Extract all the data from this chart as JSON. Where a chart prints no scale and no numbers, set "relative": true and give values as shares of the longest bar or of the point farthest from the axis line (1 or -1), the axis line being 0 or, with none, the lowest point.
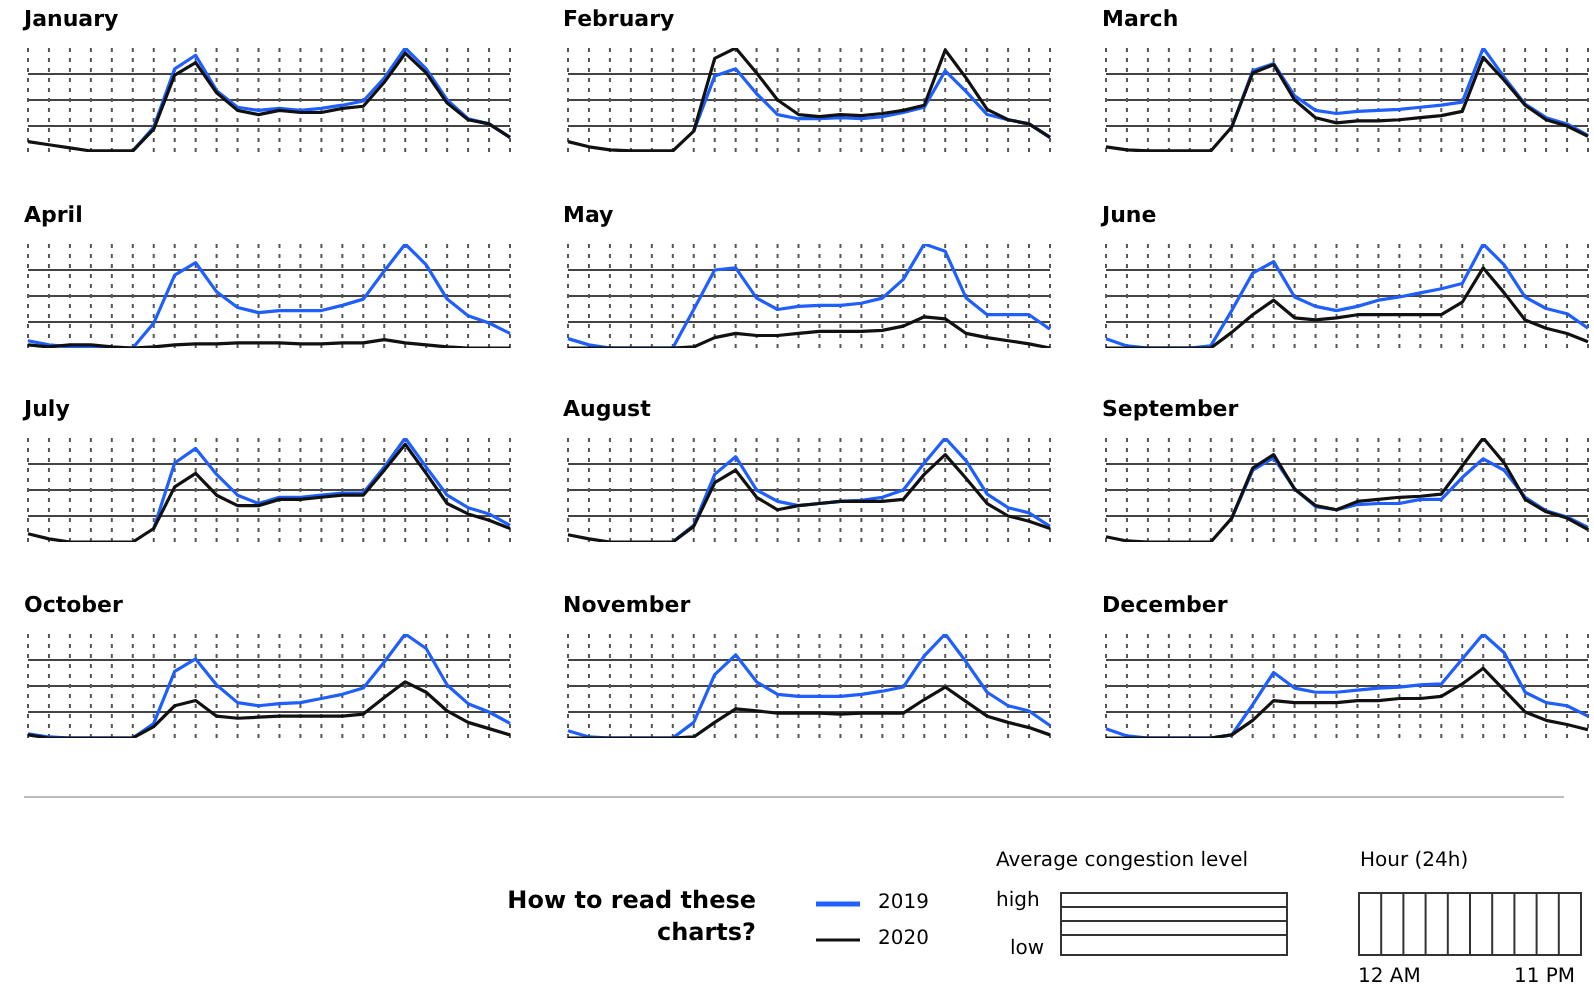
{
  "chart_data": [
    {
      "type": "line",
      "title": "January",
      "relative": true,
      "grid": true,
      "categories": [
        null,
        null,
        null,
        null,
        null,
        null,
        null,
        null,
        null,
        null,
        null,
        null,
        null,
        null,
        null,
        null,
        null,
        null,
        null,
        null,
        null,
        null,
        null,
        null
      ],
      "series": [
        {
          "name": "2019",
          "color": "#1f5fff",
          "values": [
            null,
            null,
            null,
            null,
            null,
            0.01,
            0.24,
            0.8,
            0.93,
            0.59,
            0.43,
            0.4,
            0.42,
            0.4,
            0.42,
            0.45,
            0.49,
            0.71,
            1,
            0.8,
            0.5,
            0.32,
            0.27,
            0.14
          ]
        },
        {
          "name": "2020",
          "color": "#111111",
          "values": [
            0.1,
            0.07,
            0.04,
            0.01,
            0.01,
            0.01,
            0.22,
            0.74,
            0.86,
            0.57,
            0.4,
            0.36,
            0.4,
            0.38,
            0.38,
            0.42,
            0.44,
            0.67,
            0.95,
            0.76,
            0.47,
            0.31,
            0.27,
            0.14
          ]
        }
      ]
    },
    {
      "type": "line",
      "title": "February",
      "relative": true,
      "grid": true,
      "categories": [
        null,
        null,
        null,
        null,
        null,
        null,
        null,
        null,
        null,
        null,
        null,
        null,
        null,
        null,
        null,
        null,
        null,
        null,
        null,
        null,
        null,
        null,
        null,
        null
      ],
      "series": [
        {
          "color": "#1f5fff",
          "values": [
            null,
            null,
            null,
            null,
            null,
            null,
            0.2,
            0.73,
            0.8,
            0.56,
            0.36,
            0.32,
            0.32,
            0.33,
            0.32,
            0.34,
            0.38,
            0.43,
            0.78,
            0.58,
            0.36,
            0.31,
            0.27,
            0.14
          ]
        },
        {
          "color": "#111111",
          "values": [
            0.1,
            0.05,
            0.02,
            0.01,
            0.01,
            0.01,
            0.2,
            0.9,
            1,
            0.76,
            0.5,
            0.36,
            0.34,
            0.36,
            0.35,
            0.37,
            0.4,
            0.45,
            0.98,
            0.71,
            0.41,
            0.31,
            0.27,
            0.14
          ]
        }
      ]
    },
    {
      "type": "line",
      "title": "March",
      "relative": true,
      "grid": true,
      "categories": [
        null,
        null,
        null,
        null,
        null,
        null,
        null,
        null,
        null,
        null,
        null,
        null,
        null,
        null,
        null,
        null,
        null,
        null,
        null,
        null,
        null,
        null,
        null,
        null
      ],
      "series": [
        {
          "color": "#1f5fff",
          "values": [
            null,
            null,
            null,
            null,
            null,
            null,
            0.24,
            0.78,
            0.85,
            0.54,
            0.4,
            0.37,
            0.39,
            0.4,
            0.41,
            0.43,
            0.45,
            0.48,
            1,
            0.72,
            0.46,
            0.33,
            0.27,
            0.16
          ]
        },
        {
          "color": "#111111",
          "values": [
            0.05,
            0.02,
            0.01,
            0.01,
            0.01,
            0.01,
            0.24,
            0.76,
            0.84,
            0.5,
            0.33,
            0.28,
            0.3,
            0.3,
            0.31,
            0.33,
            0.35,
            0.39,
            0.91,
            0.69,
            0.45,
            0.31,
            0.25,
            0.15
          ]
        }
      ]
    },
    {
      "type": "line",
      "title": "April",
      "relative": true,
      "grid": true,
      "categories": [
        null,
        null,
        null,
        null,
        null,
        null,
        null,
        null,
        null,
        null,
        null,
        null,
        null,
        null,
        null,
        null,
        null,
        null,
        null,
        null,
        null,
        null,
        null,
        null
      ],
      "series": [
        {
          "color": "#1f5fff",
          "values": [
            0.07,
            0.03,
            0.01,
            0.01,
            0,
            0,
            0.24,
            0.7,
            0.82,
            0.54,
            0.39,
            0.34,
            0.36,
            0.36,
            0.36,
            0.41,
            0.47,
            0.74,
            1,
            0.8,
            0.47,
            0.31,
            0.24,
            0.14
          ]
        },
        {
          "color": "#111111",
          "values": [
            0.03,
            0.01,
            0.03,
            0.03,
            0.01,
            0,
            0.01,
            0.03,
            0.04,
            0.04,
            0.05,
            0.05,
            0.05,
            0.04,
            0.04,
            0.05,
            0.05,
            0.08,
            0.05,
            0.03,
            0.01,
            0,
            0,
            0
          ]
        }
      ]
    },
    {
      "type": "line",
      "title": "May",
      "relative": true,
      "grid": true,
      "categories": [
        null,
        null,
        null,
        null,
        null,
        null,
        null,
        null,
        null,
        null,
        null,
        null,
        null,
        null,
        null,
        null,
        null,
        null,
        null,
        null,
        null,
        null,
        null,
        null
      ],
      "series": [
        {
          "color": "#1f5fff",
          "values": [
            0.09,
            0.03,
            0,
            0,
            0,
            0,
            0.37,
            0.75,
            0.77,
            0.48,
            0.37,
            0.4,
            0.41,
            0.41,
            0.43,
            0.48,
            0.66,
            1,
            0.93,
            0.48,
            0.32,
            0.32,
            0.32,
            0.18
          ]
        },
        {
          "color": "#111111",
          "values": [
            0,
            0,
            0,
            0,
            0,
            0,
            0.01,
            0.1,
            0.14,
            0.12,
            0.12,
            0.14,
            0.16,
            0.16,
            0.16,
            0.17,
            0.21,
            0.3,
            0.28,
            0.14,
            0.1,
            0.07,
            0.04,
            0
          ]
        }
      ]
    },
    {
      "type": "line",
      "title": "June",
      "relative": true,
      "grid": true,
      "categories": [
        null,
        null,
        null,
        null,
        null,
        null,
        null,
        null,
        null,
        null,
        null,
        null,
        null,
        null,
        null,
        null,
        null,
        null,
        null,
        null,
        null,
        null,
        null,
        null
      ],
      "series": [
        {
          "color": "#1f5fff",
          "values": [
            0.09,
            0.02,
            0,
            0,
            0,
            0.02,
            0.36,
            0.72,
            0.83,
            0.49,
            0.4,
            0.36,
            0.4,
            0.46,
            0.49,
            0.53,
            0.57,
            0.62,
            1,
            0.8,
            0.49,
            0.38,
            0.33,
            0.19
          ]
        },
        {
          "color": "#111111",
          "values": [
            0,
            0,
            0,
            0,
            0,
            0,
            0.15,
            0.32,
            0.46,
            0.29,
            0.27,
            0.29,
            0.32,
            0.32,
            0.32,
            0.32,
            0.32,
            0.44,
            0.77,
            0.53,
            0.27,
            0.19,
            0.14,
            0.06
          ]
        }
      ]
    },
    {
      "type": "line",
      "title": "July",
      "relative": true,
      "grid": true,
      "categories": [
        null,
        null,
        null,
        null,
        null,
        null,
        null,
        null,
        null,
        null,
        null,
        null,
        null,
        null,
        null,
        null,
        null,
        null,
        null,
        null,
        null,
        null,
        null,
        null
      ],
      "series": [
        {
          "color": "#1f5fff",
          "values": [
            null,
            null,
            null,
            null,
            null,
            null,
            0.13,
            0.76,
            0.9,
            0.65,
            0.45,
            0.37,
            0.43,
            0.43,
            0.45,
            0.47,
            0.47,
            0.72,
            1,
            0.72,
            0.45,
            0.33,
            0.27,
            0.16
          ]
        },
        {
          "color": "#111111",
          "values": [
            0.08,
            0.03,
            0,
            0,
            0,
            0,
            0.13,
            0.53,
            0.66,
            0.45,
            0.35,
            0.35,
            0.41,
            0.41,
            0.43,
            0.45,
            0.45,
            0.69,
            0.94,
            0.66,
            0.37,
            0.27,
            0.21,
            0.13
          ]
        }
      ]
    },
    {
      "type": "line",
      "title": "August",
      "relative": true,
      "grid": true,
      "categories": [
        null,
        null,
        null,
        null,
        null,
        null,
        null,
        null,
        null,
        null,
        null,
        null,
        null,
        null,
        null,
        null,
        null,
        null,
        null,
        null,
        null,
        null,
        null,
        null
      ],
      "series": [
        {
          "color": "#1f5fff",
          "values": [
            null,
            null,
            null,
            null,
            null,
            0,
            0.16,
            0.65,
            0.82,
            0.5,
            0.39,
            0.35,
            0.37,
            0.39,
            0.4,
            0.43,
            0.5,
            0.76,
            1,
            0.78,
            0.46,
            0.33,
            0.28,
            0.15
          ]
        },
        {
          "color": "#111111",
          "values": [
            0.07,
            0.03,
            0,
            0,
            0,
            0,
            0.15,
            0.57,
            0.69,
            0.43,
            0.31,
            0.35,
            0.37,
            0.39,
            0.39,
            0.39,
            0.41,
            0.65,
            0.84,
            0.61,
            0.37,
            0.25,
            0.2,
            0.13
          ]
        }
      ]
    },
    {
      "type": "line",
      "title": "September",
      "relative": true,
      "grid": true,
      "categories": [
        null,
        null,
        null,
        null,
        null,
        null,
        null,
        null,
        null,
        null,
        null,
        null,
        null,
        null,
        null,
        null,
        null,
        null,
        null,
        null,
        null,
        null,
        null,
        null
      ],
      "series": [
        {
          "color": "#1f5fff",
          "values": [
            null,
            null,
            null,
            null,
            null,
            null,
            0.23,
            0.69,
            0.81,
            0.51,
            0.34,
            0.31,
            0.36,
            0.37,
            0.37,
            0.41,
            0.41,
            0.62,
            0.8,
            0.69,
            0.43,
            0.3,
            0.24,
            0.14
          ]
        },
        {
          "color": "#111111",
          "values": [
            0.05,
            0.01,
            0,
            0,
            0,
            0,
            0.23,
            0.71,
            0.84,
            0.51,
            0.35,
            0.31,
            0.39,
            0.41,
            0.43,
            0.44,
            0.46,
            0.73,
            1,
            0.76,
            0.41,
            0.29,
            0.23,
            0.12
          ]
        }
      ]
    },
    {
      "type": "line",
      "title": "October",
      "relative": true,
      "grid": true,
      "categories": [
        null,
        null,
        null,
        null,
        null,
        null,
        null,
        null,
        null,
        null,
        null,
        null,
        null,
        null,
        null,
        null,
        null,
        null,
        null,
        null,
        null,
        null,
        null,
        null
      ],
      "series": [
        {
          "color": "#1f5fff",
          "values": [
            0.04,
            0.01,
            0,
            0,
            0,
            0,
            0.14,
            0.64,
            0.76,
            0.51,
            0.34,
            0.31,
            0.33,
            0.34,
            0.38,
            0.42,
            0.48,
            0.73,
            1,
            0.86,
            0.51,
            0.33,
            0.25,
            0.14
          ]
        },
        {
          "color": "#111111",
          "values": [
            0.03,
            0,
            0,
            0,
            0,
            0,
            0.11,
            0.31,
            0.36,
            0.21,
            0.19,
            0.2,
            0.21,
            0.21,
            0.21,
            0.21,
            0.23,
            0.39,
            0.54,
            0.44,
            0.26,
            0.15,
            0.09,
            0.03
          ]
        }
      ]
    },
    {
      "type": "line",
      "title": "November",
      "relative": true,
      "grid": true,
      "categories": [
        null,
        null,
        null,
        null,
        null,
        null,
        null,
        null,
        null,
        null,
        null,
        null,
        null,
        null,
        null,
        null,
        null,
        null,
        null,
        null,
        null,
        null,
        null,
        null
      ],
      "series": [
        {
          "color": "#1f5fff",
          "values": [
            0.07,
            0.01,
            0,
            0,
            0,
            0,
            0.15,
            0.61,
            0.8,
            0.54,
            0.42,
            0.4,
            0.4,
            0.4,
            0.42,
            0.45,
            0.49,
            0.79,
            1,
            0.73,
            0.44,
            0.31,
            0.26,
            0.12
          ]
        },
        {
          "color": "#111111",
          "values": [
            0,
            0,
            0,
            0,
            0,
            0,
            0.01,
            0.15,
            0.28,
            0.26,
            0.24,
            0.24,
            0.24,
            0.23,
            0.24,
            0.24,
            0.24,
            0.37,
            0.49,
            0.35,
            0.21,
            0.15,
            0.1,
            0.03
          ]
        }
      ]
    },
    {
      "type": "line",
      "title": "December",
      "relative": true,
      "grid": true,
      "categories": [
        null,
        null,
        null,
        null,
        null,
        null,
        null,
        null,
        null,
        null,
        null,
        null,
        null,
        null,
        null,
        null,
        null,
        null,
        null,
        null,
        null,
        null,
        null,
        null
      ],
      "series": [
        {
          "color": "#1f5fff",
          "values": [
            0.09,
            0.02,
            0,
            0,
            0,
            0,
            0.03,
            0.32,
            0.63,
            0.48,
            0.44,
            0.44,
            0.46,
            0.48,
            0.49,
            0.51,
            0.52,
            0.76,
            1,
            0.82,
            0.44,
            0.34,
            0.31,
            0.21
          ]
        },
        {
          "color": "#111111",
          "values": [
            0,
            0,
            0,
            0,
            0,
            0,
            0.03,
            0.17,
            0.36,
            0.34,
            0.34,
            0.34,
            0.36,
            0.36,
            0.38,
            0.38,
            0.4,
            0.52,
            0.67,
            0.46,
            0.25,
            0.17,
            0.13,
            0.08
          ]
        }
      ]
    },
    {
      "type": "other",
      "title": "How to read these charts?",
      "annotations": [
        "Average congestion level",
        "high",
        "low",
        "Hour (24h)",
        "12 AM",
        "11 PM"
      ]
    }
  ]
}
